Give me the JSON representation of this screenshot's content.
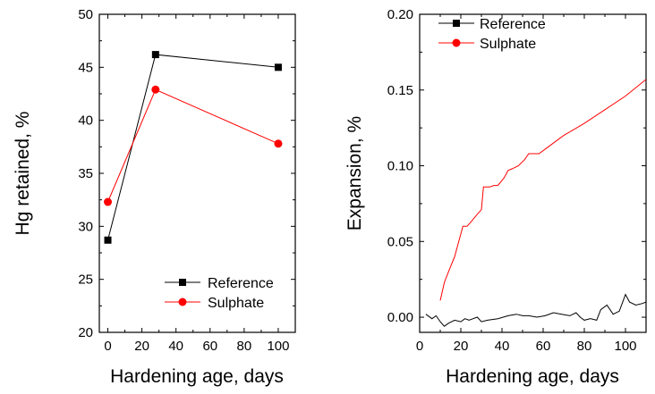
{
  "chart_data": [
    {
      "type": "line",
      "xlabel": "Hardening age, days",
      "ylabel": "Hg retained, %",
      "xlim": [
        -5,
        110
      ],
      "ylim": [
        20,
        50
      ],
      "xticks": [
        0,
        20,
        40,
        60,
        80,
        100
      ],
      "yticks": [
        20,
        25,
        30,
        35,
        40,
        45,
        50
      ],
      "grid": false,
      "legend_position": "bottom-right",
      "series": [
        {
          "name": "Reference",
          "color": "#000000",
          "marker": "square",
          "x": [
            0,
            28,
            100
          ],
          "y": [
            28.7,
            46.2,
            45.0
          ]
        },
        {
          "name": "Sulphate",
          "color": "#ff0000",
          "marker": "circle",
          "x": [
            0,
            28,
            100
          ],
          "y": [
            32.3,
            42.9,
            37.8
          ]
        }
      ]
    },
    {
      "type": "line",
      "xlabel": "Hardening age, days",
      "ylabel": "Expansion, %",
      "xlim": [
        0,
        110
      ],
      "ylim": [
        -0.01,
        0.2
      ],
      "xticks": [
        0,
        20,
        40,
        60,
        80,
        100
      ],
      "yticks": [
        0.0,
        0.05,
        0.1,
        0.15,
        0.2
      ],
      "ytick_labels": [
        "0.00",
        "0.05",
        "0.10",
        "0.15",
        "0.20"
      ],
      "grid": false,
      "legend_position": "top-left",
      "series": [
        {
          "name": "Reference",
          "color": "#000000",
          "marker": "square",
          "x": [
            3,
            6,
            8,
            10,
            12,
            14,
            17,
            20,
            22,
            24,
            26,
            28,
            30,
            33,
            38,
            43,
            47,
            50,
            53,
            57,
            61,
            65,
            69,
            73,
            76,
            78,
            80,
            83,
            86,
            88,
            91,
            94,
            97,
            100,
            102,
            105,
            108,
            110
          ],
          "y": [
            0.002,
            -0.001,
            0.001,
            -0.003,
            -0.006,
            -0.004,
            -0.002,
            -0.003,
            -0.001,
            -0.002,
            -0.001,
            0.0,
            -0.003,
            -0.002,
            -0.001,
            0.001,
            0.002,
            0.001,
            0.001,
            0.0,
            0.001,
            0.003,
            0.002,
            0.001,
            0.003,
            0.0,
            -0.002,
            -0.001,
            -0.002,
            0.005,
            0.008,
            0.002,
            0.004,
            0.015,
            0.01,
            0.008,
            0.009,
            0.01
          ]
        },
        {
          "name": "Sulphate",
          "color": "#ff0000",
          "marker": "circle",
          "x": [
            10,
            12,
            14,
            17,
            21,
            23,
            25,
            28,
            30,
            31,
            34,
            36,
            38,
            41,
            43,
            45,
            48,
            51,
            53,
            58,
            62,
            70,
            80,
            90,
            100,
            110
          ],
          "y": [
            0.011,
            0.023,
            0.03,
            0.04,
            0.06,
            0.06,
            0.063,
            0.068,
            0.071,
            0.086,
            0.086,
            0.087,
            0.087,
            0.092,
            0.097,
            0.098,
            0.1,
            0.104,
            0.108,
            0.108,
            0.112,
            0.12,
            0.128,
            0.137,
            0.146,
            0.157
          ]
        }
      ]
    }
  ]
}
